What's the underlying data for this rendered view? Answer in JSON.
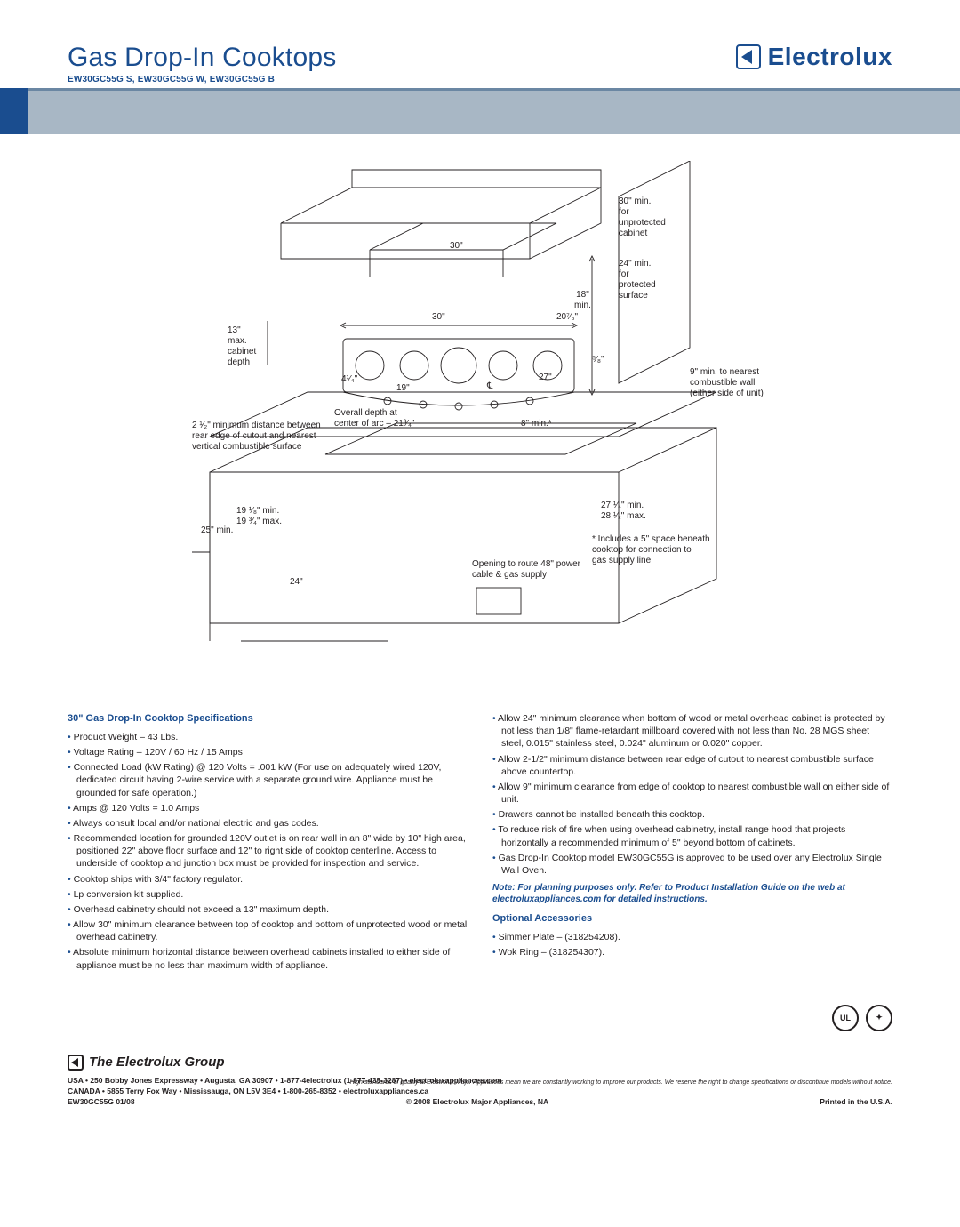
{
  "header": {
    "title": "Gas Drop-In Cooktops",
    "models": "EW30GC55G S, EW30GC55G W, EW30GC55G B",
    "brand": "Electrolux"
  },
  "diagram": {
    "type": "technical-line-drawing",
    "line_color": "#231f20",
    "line_width": 0.8,
    "labels": {
      "top_hood_30": "30\"",
      "unprotected": "30\" min.\nfor\nunprotected\ncabinet",
      "protected": "24\" min.\nfor\nprotected\nsurface",
      "eighteen_min": "18\"\nmin.",
      "thirty_top": "30\"",
      "twenty_seven_eighths": "20⁷⁄₈\"",
      "thirteen_max": "13\"\nmax.\ncabinet\ndepth",
      "four_quarter": "4¹⁄₄\"",
      "nineteen": "19\"",
      "twenty_seven": "27\"",
      "five_eighths": "⁵⁄₈\"",
      "nine_min": "9\" min. to nearest\ncombustible wall\n(either side of unit)",
      "overall_depth": "Overall depth at\ncenter of arc – 21³⁄₄\"",
      "eight_min": "8\" min.*",
      "two_half": "2 ¹⁄₂\" minimum distance between\nrear edge of cutout and nearest\nvertical combustible surface",
      "nineteen_eighth": "19 ¹⁄₈\" min.\n19 ³⁄₄\" max.",
      "twentyfive_min": "25\" min.",
      "twentyfour": "24\"",
      "opening": "Opening to route 48\" power\ncable & gas supply",
      "twentyseven_quarter": "27 ¹⁄₄\" min.\n28 ¹⁄₂\" max.",
      "five_space": "* Includes a 5\" space beneath\ncooktop for connection to\ngas supply line",
      "cl": "℄"
    }
  },
  "spec_heading": "30\" Gas Drop-In Cooktop Specifications",
  "specs_left": [
    "Product Weight – 43 Lbs.",
    "Voltage Rating – 120V / 60 Hz / 15 Amps",
    "Connected Load (kW Rating) @ 120 Volts = .001 kW (For use on adequately wired 120V, dedicated circuit having 2-wire service with a separate ground wire. Appliance must be grounded for safe operation.)",
    "Amps @ 120 Volts = 1.0 Amps",
    "Always consult local and/or national electric and gas codes.",
    "Recommended location for grounded 120V outlet is on rear wall in an 8\" wide by 10\" high area, positioned 22\" above floor surface and 12\" to right side of cooktop centerline. Access to underside of cooktop and junction box must be provided for inspection and service.",
    "Cooktop ships with 3/4\" factory regulator.",
    "Lp conversion kit supplied.",
    "Overhead cabinetry should not exceed a 13\" maximum depth.",
    "Allow 30\" minimum clearance between top of cooktop and bottom of unprotected wood or metal overhead cabinetry.",
    "Absolute minimum horizontal distance between overhead cabinets installed to either side of appliance must be no less than maximum width of appliance."
  ],
  "specs_right": [
    "Allow 24\" minimum clearance when bottom of wood or metal overhead cabinet is protected by not less than 1/8\" flame-retardant millboard covered with not less than No. 28 MGS sheet steel, 0.015\" stainless steel, 0.024\" aluminum or 0.020\" copper.",
    "Allow 2-1/2\" minimum distance between rear edge of cutout to nearest combustible surface above countertop.",
    "Allow 9\" minimum clearance from edge of cooktop to nearest combustible wall on either side of unit.",
    "Drawers cannot be installed beneath this cooktop.",
    "To reduce risk of fire when using overhead cabinetry, install range hood that projects horizontally a recommended minimum of 5\" beyond bottom of cabinets.",
    "Gas Drop-In Cooktop model EW30GC55G is approved to be used over any Electrolux Single Wall Oven."
  ],
  "note": "Note: For planning purposes only. Refer to Product Installation Guide on the web at electroluxappliances.com for detailed instructions.",
  "accessories_heading": "Optional Accessories",
  "accessories": [
    "Simmer Plate – (318254208).",
    "Wok Ring – (318254307)."
  ],
  "footer": {
    "group": "The Electrolux Group",
    "addr1": "USA • 250 Bobby Jones Expressway • Augusta, GA 30907 • 1-877-4electrolux (1-877-435-3287) • electroluxappliances.com",
    "addr2": "CANADA • 5855 Terry Fox Way • Mississauga, ON L5V 3E4 • 1-800-265-8352 • electroluxappliances.ca",
    "disclaimer": "High standards of quality at Electrolux Major Appliances mean we are constantly working to improve our products. We reserve the right to change specifications or discontinue models without notice.",
    "code": "EW30GC55G  01/08",
    "copyright": "© 2008 Electrolux Major Appliances, NA",
    "printed": "Printed in the U.S.A.",
    "badge1": "UL",
    "badge2": "✦"
  }
}
